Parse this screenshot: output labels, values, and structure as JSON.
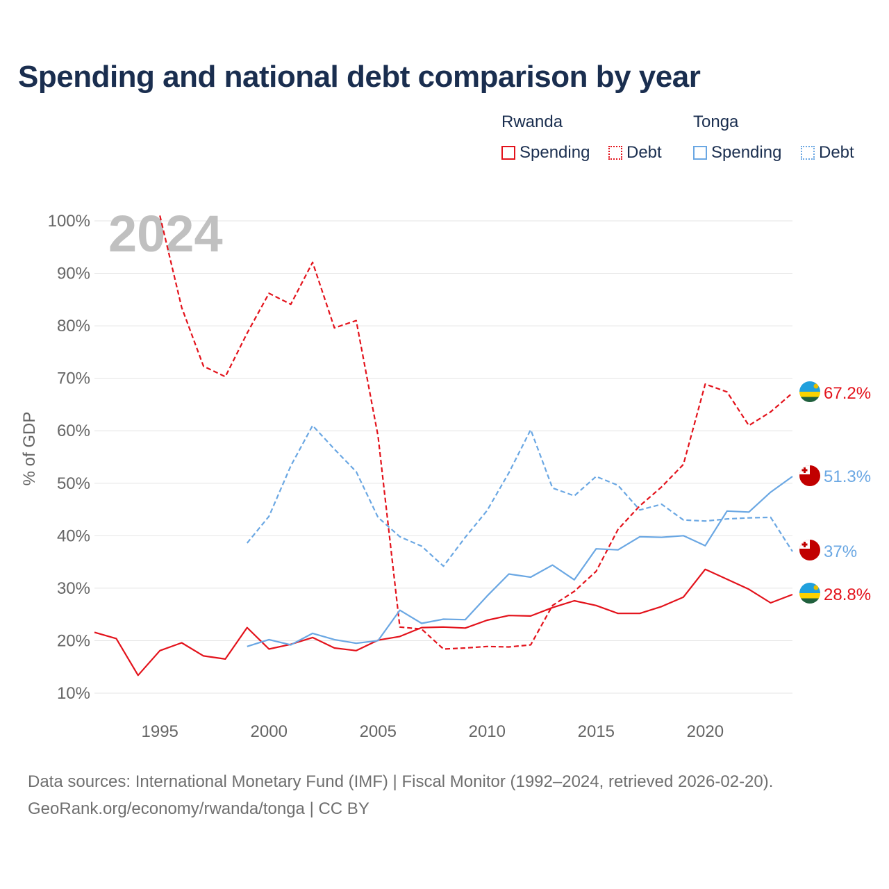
{
  "title": "Spending and national debt comparison by year",
  "legend": {
    "rwanda_label": "Rwanda",
    "tonga_label": "Tonga",
    "spending": "Spending",
    "debt": "Debt"
  },
  "source": {
    "line1": "Data sources: International Monetary Fund (IMF) | Fiscal Monitor (1992–2024, retrieved 2026-02-20).",
    "line2": "GeoRank.org/economy/rwanda/tonga | CC BY"
  },
  "colors": {
    "rwanda": "#e3121b",
    "tonga": "#6aa7e3",
    "grid": "#e4e4e4",
    "axis_text": "#666666",
    "year_watermark": "#c0c0c0"
  },
  "chart_data": {
    "type": "line",
    "year_label": "2024",
    "ylabel": "% of GDP",
    "xlim": [
      1992,
      2024
    ],
    "ylim": [
      10,
      100
    ],
    "xticks": [
      1995,
      2000,
      2005,
      2010,
      2015,
      2020
    ],
    "yticks": [
      10,
      20,
      30,
      40,
      50,
      60,
      70,
      80,
      90,
      100
    ],
    "ytick_suffix": "%",
    "series": [
      {
        "name": "Rwanda Debt",
        "country": "Rwanda",
        "kind": "Debt",
        "style": "dashed",
        "color": "#e3121b",
        "x": [
          1995,
          1996,
          1997,
          1998,
          1999,
          2000,
          2001,
          2002,
          2003,
          2004,
          2005,
          2006,
          2007,
          2008,
          2009,
          2010,
          2011,
          2012,
          2013,
          2014,
          2015,
          2016,
          2017,
          2018,
          2019,
          2020,
          2021,
          2022,
          2023,
          2024
        ],
        "y": [
          101,
          83.5,
          72.3,
          70.3,
          78.6,
          86.2,
          84.1,
          92.1,
          79.6,
          81,
          59,
          22.6,
          22.2,
          18.4,
          18.6,
          18.9,
          18.8,
          19.2,
          26.7,
          29.4,
          33.2,
          41.2,
          45.7,
          49.3,
          53.6,
          68.9,
          67.4,
          61,
          63.6,
          67.2
        ],
        "end_label": "67.2%"
      },
      {
        "name": "Rwanda Spending",
        "country": "Rwanda",
        "kind": "Spending",
        "style": "solid",
        "color": "#e3121b",
        "x": [
          1992,
          1993,
          1994,
          1995,
          1996,
          1997,
          1998,
          1999,
          2000,
          2001,
          2002,
          2003,
          2004,
          2005,
          2006,
          2007,
          2008,
          2009,
          2010,
          2011,
          2012,
          2013,
          2014,
          2015,
          2016,
          2017,
          2018,
          2019,
          2020,
          2021,
          2022,
          2023,
          2024
        ],
        "y": [
          21.6,
          20.4,
          13.4,
          18.1,
          19.6,
          17.1,
          16.5,
          22.5,
          18.4,
          19.3,
          20.6,
          18.6,
          18.1,
          20.1,
          20.8,
          22.5,
          22.6,
          22.4,
          23.9,
          24.8,
          24.7,
          26.3,
          27.6,
          26.7,
          25.2,
          25.2,
          26.5,
          28.3,
          33.6,
          31.7,
          29.8,
          27.2,
          28.8
        ],
        "end_label": "28.8%"
      },
      {
        "name": "Tonga Debt",
        "country": "Tonga",
        "kind": "Debt",
        "style": "dashed",
        "color": "#6aa7e3",
        "x": [
          1999,
          2000,
          2001,
          2002,
          2003,
          2004,
          2005,
          2006,
          2007,
          2008,
          2009,
          2010,
          2011,
          2012,
          2013,
          2014,
          2015,
          2016,
          2017,
          2018,
          2019,
          2020,
          2021,
          2022,
          2023,
          2024
        ],
        "y": [
          38.6,
          43.7,
          53.3,
          61,
          56.5,
          52.2,
          43.5,
          39.8,
          38,
          34.2,
          39.7,
          44.8,
          52,
          60.2,
          49.1,
          47.6,
          51.3,
          49.6,
          44.9,
          46,
          43,
          42.8,
          43.2,
          43.4,
          43.5,
          37
        ],
        "end_label": "37%"
      },
      {
        "name": "Tonga Spending",
        "country": "Tonga",
        "kind": "Spending",
        "style": "solid",
        "color": "#6aa7e3",
        "x": [
          1999,
          2000,
          2001,
          2002,
          2003,
          2004,
          2005,
          2006,
          2007,
          2008,
          2009,
          2010,
          2011,
          2012,
          2013,
          2014,
          2015,
          2016,
          2017,
          2018,
          2019,
          2020,
          2021,
          2022,
          2023,
          2024
        ],
        "y": [
          18.9,
          20.2,
          19.2,
          21.4,
          20.2,
          19.5,
          20,
          25.8,
          23.3,
          24.1,
          24,
          28.5,
          32.7,
          32.1,
          34.4,
          31.6,
          37.5,
          37.3,
          39.8,
          39.7,
          40,
          38.1,
          44.7,
          44.5,
          48.3,
          51.3
        ],
        "end_label": "51.3%"
      }
    ]
  }
}
